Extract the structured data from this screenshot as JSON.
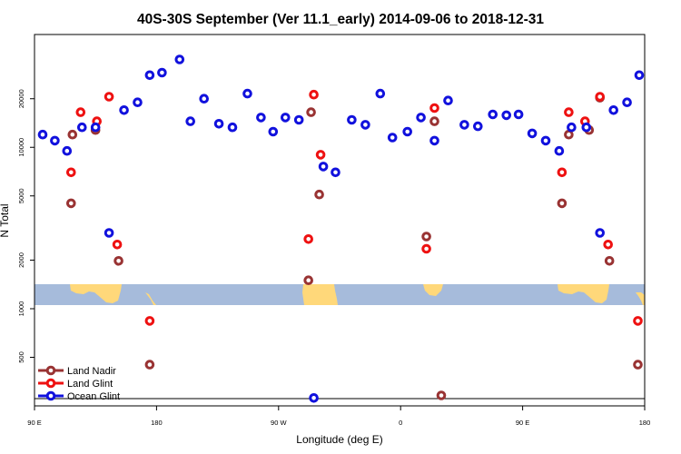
{
  "chart_data": {
    "type": "scatter",
    "title": "40S-30S September (Ver 11.1_early)   2014-09-06 to 2018-12-31",
    "xlabel": "Longitude (deg E)",
    "ylabel": "N Total",
    "y_scale": "log",
    "x_range": [
      90,
      540
    ],
    "ylim": [
      250,
      50000
    ],
    "x_ticks": [
      {
        "value": 90,
        "label": "90 E"
      },
      {
        "value": 180,
        "label": "180"
      },
      {
        "value": 270,
        "label": "90 W"
      },
      {
        "value": 360,
        "label": "0"
      },
      {
        "value": 450,
        "label": "90 E"
      },
      {
        "value": 540,
        "label": "180"
      }
    ],
    "y_ticks": [
      {
        "value": 500,
        "label": "500"
      },
      {
        "value": 1000,
        "label": "1000"
      },
      {
        "value": 2000,
        "label": "2000"
      },
      {
        "value": 5000,
        "label": "5000"
      },
      {
        "value": 10000,
        "label": "10000"
      },
      {
        "value": 20000,
        "label": "20000"
      }
    ],
    "map_band": {
      "y_low": 950,
      "y_high": 1260,
      "ocean_color": "#a6bbdb",
      "land_color": "#ffd87a"
    },
    "series": [
      {
        "name": "Land Nadir",
        "color": "#993333",
        "points": [
          {
            "x": 118,
            "y": 12000
          },
          {
            "x": 117,
            "y": 4500
          },
          {
            "x": 135,
            "y": 12800
          },
          {
            "x": 152,
            "y": 1980
          },
          {
            "x": 175,
            "y": 450
          },
          {
            "x": 292,
            "y": 1500
          },
          {
            "x": 294,
            "y": 16500
          },
          {
            "x": 300,
            "y": 5100
          },
          {
            "x": 379,
            "y": 2800
          },
          {
            "x": 385,
            "y": 14500
          },
          {
            "x": 390,
            "y": 290
          },
          {
            "x": 479,
            "y": 4500
          },
          {
            "x": 484,
            "y": 12000
          },
          {
            "x": 499,
            "y": 12800
          },
          {
            "x": 507,
            "y": 20300
          },
          {
            "x": 514,
            "y": 1980
          },
          {
            "x": 535,
            "y": 450
          }
        ]
      },
      {
        "name": "Land Glint",
        "color": "#ee1111",
        "points": [
          {
            "x": 117,
            "y": 7000
          },
          {
            "x": 124,
            "y": 16500
          },
          {
            "x": 136,
            "y": 14500
          },
          {
            "x": 145,
            "y": 20600
          },
          {
            "x": 151,
            "y": 2500
          },
          {
            "x": 175,
            "y": 840
          },
          {
            "x": 292,
            "y": 2700
          },
          {
            "x": 296,
            "y": 21200
          },
          {
            "x": 301,
            "y": 9000
          },
          {
            "x": 379,
            "y": 2350
          },
          {
            "x": 385,
            "y": 17500
          },
          {
            "x": 479,
            "y": 7000
          },
          {
            "x": 484,
            "y": 16500
          },
          {
            "x": 496,
            "y": 14500
          },
          {
            "x": 507,
            "y": 20600
          },
          {
            "x": 513,
            "y": 2500
          },
          {
            "x": 535,
            "y": 840
          }
        ]
      },
      {
        "name": "Ocean Glint",
        "color": "#1111dd",
        "points": [
          {
            "x": 96,
            "y": 12000
          },
          {
            "x": 105,
            "y": 11000
          },
          {
            "x": 114,
            "y": 9500
          },
          {
            "x": 125,
            "y": 13300
          },
          {
            "x": 135,
            "y": 13300
          },
          {
            "x": 145,
            "y": 2950
          },
          {
            "x": 156,
            "y": 17000
          },
          {
            "x": 166,
            "y": 19000
          },
          {
            "x": 175,
            "y": 28000
          },
          {
            "x": 184,
            "y": 29000
          },
          {
            "x": 197,
            "y": 35000
          },
          {
            "x": 205,
            "y": 14500
          },
          {
            "x": 215,
            "y": 20000
          },
          {
            "x": 226,
            "y": 14000
          },
          {
            "x": 236,
            "y": 13300
          },
          {
            "x": 247,
            "y": 21500
          },
          {
            "x": 257,
            "y": 15300
          },
          {
            "x": 266,
            "y": 12500
          },
          {
            "x": 275,
            "y": 15300
          },
          {
            "x": 285,
            "y": 14800
          },
          {
            "x": 296,
            "y": 280
          },
          {
            "x": 303,
            "y": 7600
          },
          {
            "x": 312,
            "y": 7000
          },
          {
            "x": 324,
            "y": 14800
          },
          {
            "x": 334,
            "y": 13800
          },
          {
            "x": 345,
            "y": 21500
          },
          {
            "x": 354,
            "y": 11500
          },
          {
            "x": 365,
            "y": 12500
          },
          {
            "x": 375,
            "y": 15300
          },
          {
            "x": 385,
            "y": 11000
          },
          {
            "x": 395,
            "y": 19500
          },
          {
            "x": 407,
            "y": 13800
          },
          {
            "x": 417,
            "y": 13500
          },
          {
            "x": 428,
            "y": 16000
          },
          {
            "x": 438,
            "y": 15800
          },
          {
            "x": 447,
            "y": 16000
          },
          {
            "x": 457,
            "y": 12200
          },
          {
            "x": 467,
            "y": 11000
          },
          {
            "x": 477,
            "y": 9500
          },
          {
            "x": 486,
            "y": 13300
          },
          {
            "x": 497,
            "y": 13300
          },
          {
            "x": 507,
            "y": 2950
          },
          {
            "x": 517,
            "y": 17000
          },
          {
            "x": 527,
            "y": 19000
          },
          {
            "x": 536,
            "y": 28000
          }
        ]
      }
    ],
    "legend": {
      "placement": "bottom-left",
      "entries": [
        "Land Nadir",
        "Land Glint",
        "Ocean Glint"
      ]
    }
  }
}
